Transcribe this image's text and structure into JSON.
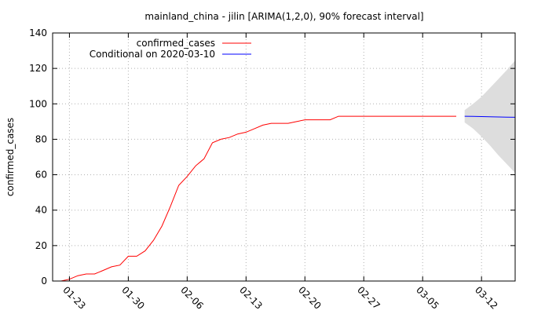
{
  "chart_data": {
    "type": "line",
    "title": "mainland_china - jilin [ARIMA(1,2,0), 90% forecast interval]",
    "xlabel": "",
    "ylabel": "confirmed_cases",
    "ylim": [
      0,
      140
    ],
    "xlim": [
      "2020-01-21",
      "2020-03-16"
    ],
    "y_ticks": [
      0,
      20,
      40,
      60,
      80,
      100,
      120,
      140
    ],
    "x_ticks": [
      {
        "date": "2020-01-23",
        "label": "01-23"
      },
      {
        "date": "2020-01-30",
        "label": "01-30"
      },
      {
        "date": "2020-02-06",
        "label": "02-06"
      },
      {
        "date": "2020-02-13",
        "label": "02-13"
      },
      {
        "date": "2020-02-20",
        "label": "02-20"
      },
      {
        "date": "2020-02-27",
        "label": "02-27"
      },
      {
        "date": "2020-03-05",
        "label": "03-05"
      },
      {
        "date": "2020-03-12",
        "label": "03-12"
      }
    ],
    "grid": true,
    "legend_position": "top-left",
    "series": [
      {
        "name": "confirmed_cases",
        "color": "#ff0000",
        "x": [
          "2020-01-22",
          "2020-01-23",
          "2020-01-24",
          "2020-01-25",
          "2020-01-26",
          "2020-01-27",
          "2020-01-28",
          "2020-01-29",
          "2020-01-30",
          "2020-01-31",
          "2020-02-01",
          "2020-02-02",
          "2020-02-03",
          "2020-02-04",
          "2020-02-05",
          "2020-02-06",
          "2020-02-07",
          "2020-02-08",
          "2020-02-09",
          "2020-02-10",
          "2020-02-11",
          "2020-02-12",
          "2020-02-13",
          "2020-02-14",
          "2020-02-15",
          "2020-02-16",
          "2020-02-17",
          "2020-02-18",
          "2020-02-19",
          "2020-02-20",
          "2020-02-21",
          "2020-02-22",
          "2020-02-23",
          "2020-02-24",
          "2020-02-25",
          "2020-02-26",
          "2020-02-27",
          "2020-02-28",
          "2020-02-29",
          "2020-03-01",
          "2020-03-02",
          "2020-03-03",
          "2020-03-04",
          "2020-03-05",
          "2020-03-06",
          "2020-03-07",
          "2020-03-08",
          "2020-03-09"
        ],
        "values": [
          0,
          1,
          3,
          4,
          4,
          6,
          8,
          9,
          14,
          14,
          17,
          23,
          31,
          42,
          54,
          59,
          65,
          69,
          78,
          80,
          81,
          83,
          84,
          86,
          88,
          89,
          89,
          89,
          90,
          91,
          91,
          91,
          91,
          93,
          93,
          93,
          93,
          93,
          93,
          93,
          93,
          93,
          93,
          93,
          93,
          93,
          93,
          93
        ]
      },
      {
        "name": "Conditional on 2020-03-10",
        "color": "#0000ff",
        "x": [
          "2020-03-10",
          "2020-03-11",
          "2020-03-12",
          "2020-03-13",
          "2020-03-14",
          "2020-03-15",
          "2020-03-16"
        ],
        "values": [
          93,
          92.9,
          92.8,
          92.7,
          92.6,
          92.5,
          92.4
        ]
      }
    ],
    "forecast_interval": {
      "level": "90%",
      "color": "#dddddd",
      "x": [
        "2020-03-10",
        "2020-03-11",
        "2020-03-12",
        "2020-03-13",
        "2020-03-14",
        "2020-03-15",
        "2020-03-16"
      ],
      "lower": [
        89.5,
        86,
        81.5,
        76.5,
        71,
        66,
        61
      ],
      "upper": [
        96.5,
        100,
        104,
        109,
        114,
        119,
        124.5
      ]
    }
  }
}
